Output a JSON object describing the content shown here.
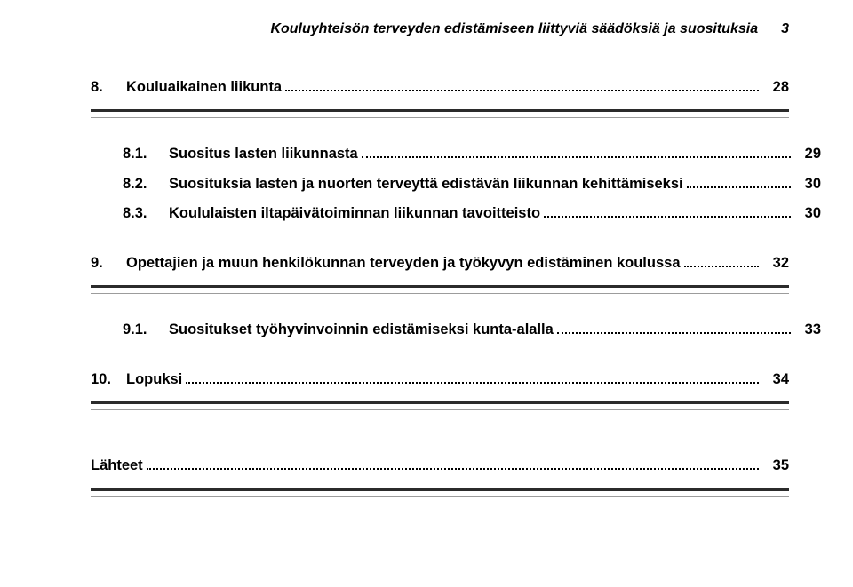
{
  "header": {
    "title": "Kouluyhteisön terveyden edistämiseen liittyviä säädöksiä ja suosituksia",
    "pageNumber": "3"
  },
  "toc": {
    "section8": {
      "number": "8.",
      "label": "Kouluaikainen liikunta",
      "page": "28",
      "items": [
        {
          "number": "8.1.",
          "label": "Suositus lasten liikunnasta",
          "page": "29"
        },
        {
          "number": "8.2.",
          "label": "Suosituksia lasten ja nuorten terveyttä edistävän liikunnan kehittämiseksi",
          "page": "30"
        },
        {
          "number": "8.3.",
          "label": "Koululaisten iltapäivätoiminnan liikunnan tavoitteisto",
          "page": "30"
        }
      ]
    },
    "section9": {
      "number": "9.",
      "label": "Opettajien ja muun henkilökunnan terveyden ja työkyvyn edistäminen koulussa",
      "page": "32",
      "items": [
        {
          "number": "9.1.",
          "label": "Suositukset työhyvinvoinnin edistämiseksi kunta-alalla",
          "page": "33"
        }
      ]
    },
    "section10": {
      "number": "10.",
      "label": "Lopuksi",
      "page": "34"
    },
    "sources": {
      "label": "Lähteet",
      "page": "35"
    }
  },
  "style": {
    "text_color": "#000000",
    "divider_heavy_color": "#2b2b2b",
    "divider_light_color": "#9c9c9c",
    "background": "#ffffff",
    "font_family": "Arial",
    "font_size_body": 16.5,
    "font_size_header": 16,
    "font_weight_bold": 700
  }
}
